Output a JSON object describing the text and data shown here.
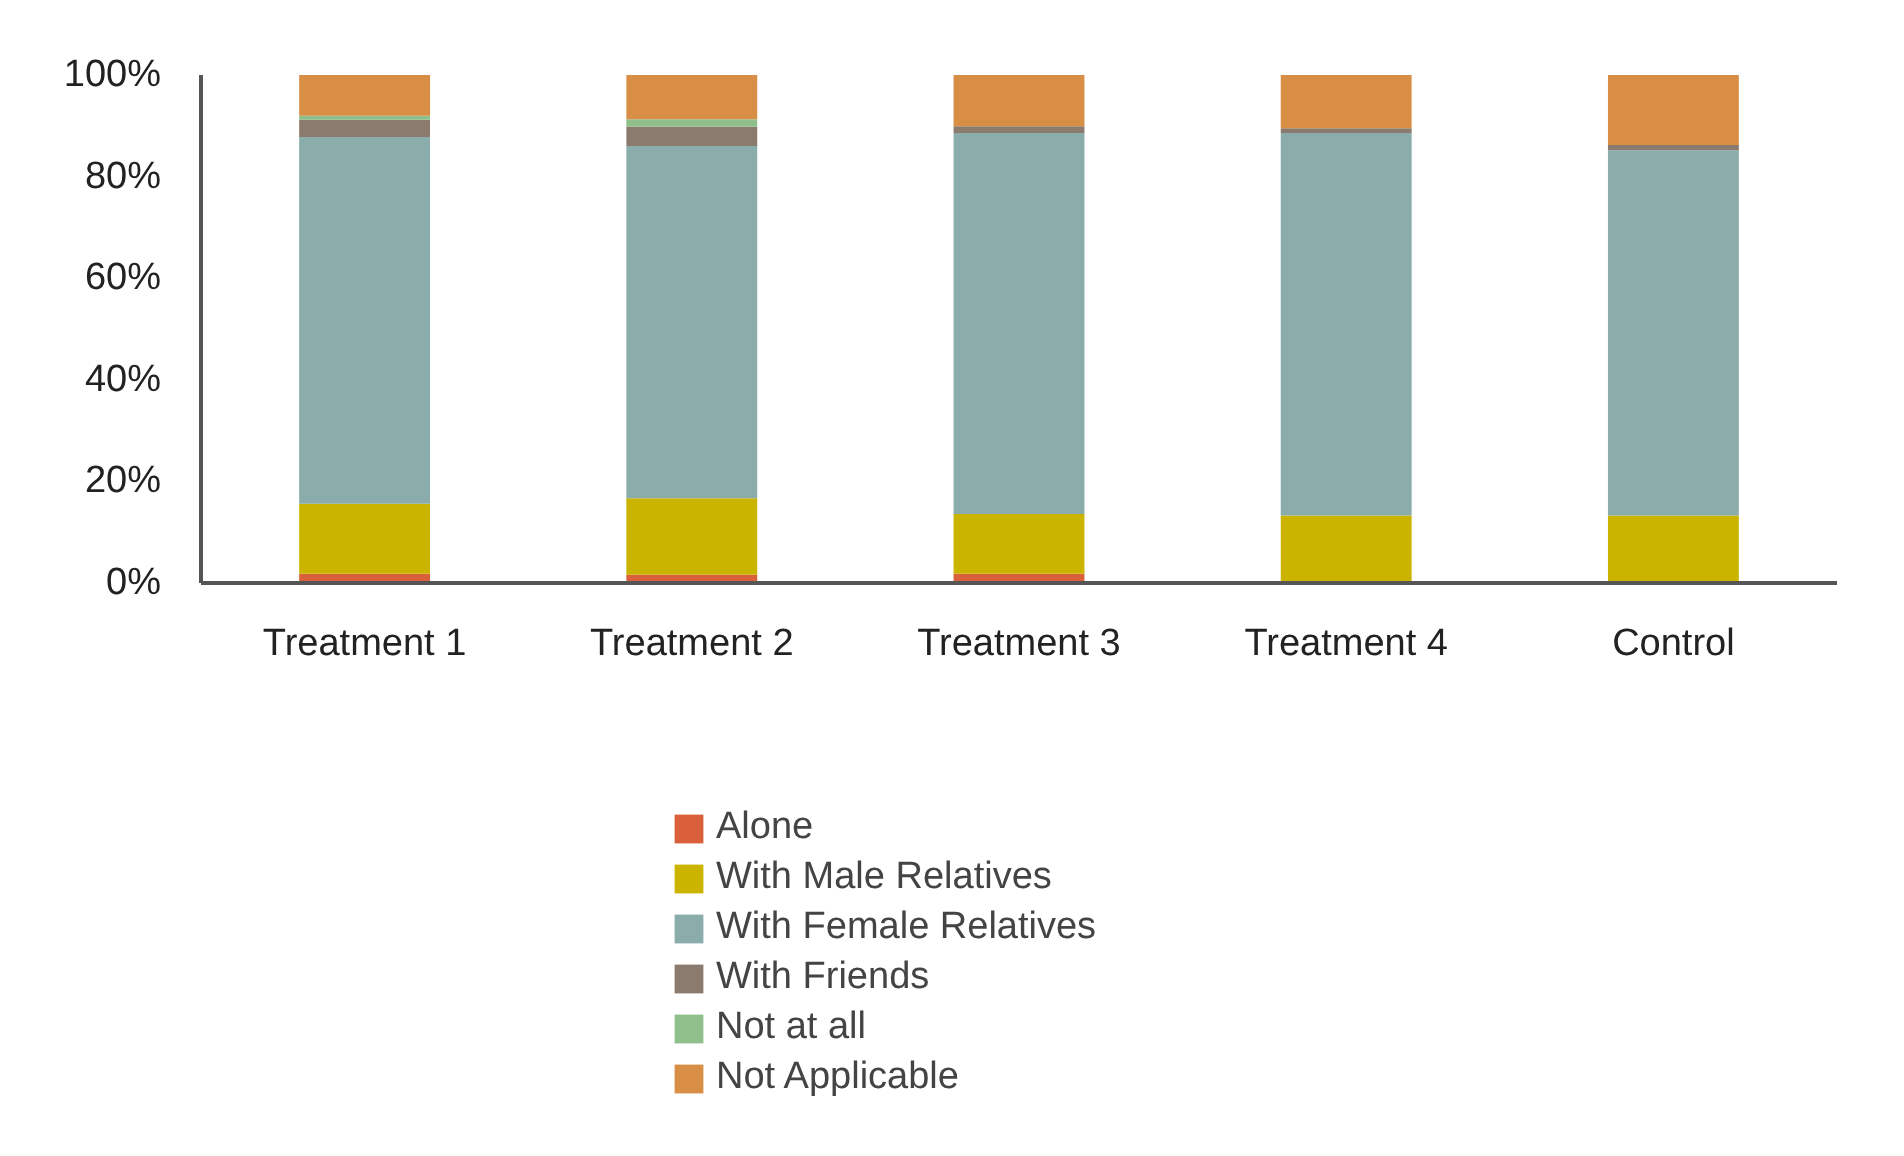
{
  "chart_data": {
    "type": "bar",
    "stacked": true,
    "categories": [
      "Treatment 1",
      "Treatment 2",
      "Treatment 3",
      "Treatment 4",
      "Control"
    ],
    "series": [
      {
        "name": "Alone",
        "color": "#d9603b",
        "values": [
          1.8,
          1.6,
          1.8,
          0,
          0
        ]
      },
      {
        "name": "With Male Relatives",
        "color": "#cbb400",
        "values": [
          13.8,
          15.1,
          11.8,
          13.3,
          13.3
        ]
      },
      {
        "name": "With Female Relatives",
        "color": "#8aacab",
        "values": [
          72.2,
          69.3,
          75.0,
          75.3,
          71.9
        ]
      },
      {
        "name": "With Friends",
        "color": "#8a7b6e",
        "values": [
          3.4,
          3.8,
          1.3,
          0.9,
          1.0
        ]
      },
      {
        "name": "Not at all",
        "color": "#8fbf8a",
        "values": [
          0.8,
          1.5,
          0,
          0,
          0
        ]
      },
      {
        "name": "Not Applicable",
        "color": "#d88f45",
        "values": [
          8.0,
          8.7,
          10.1,
          10.5,
          13.8
        ]
      }
    ],
    "ylim": [
      0,
      100
    ],
    "yticks": [
      {
        "value": 0,
        "label": "0%"
      },
      {
        "value": 20,
        "label": "20%"
      },
      {
        "value": 40,
        "label": "40%"
      },
      {
        "value": 60,
        "label": "60%"
      },
      {
        "value": 80,
        "label": "80%"
      },
      {
        "value": 100,
        "label": "100%"
      }
    ],
    "grid": false,
    "legend": "bottom"
  }
}
